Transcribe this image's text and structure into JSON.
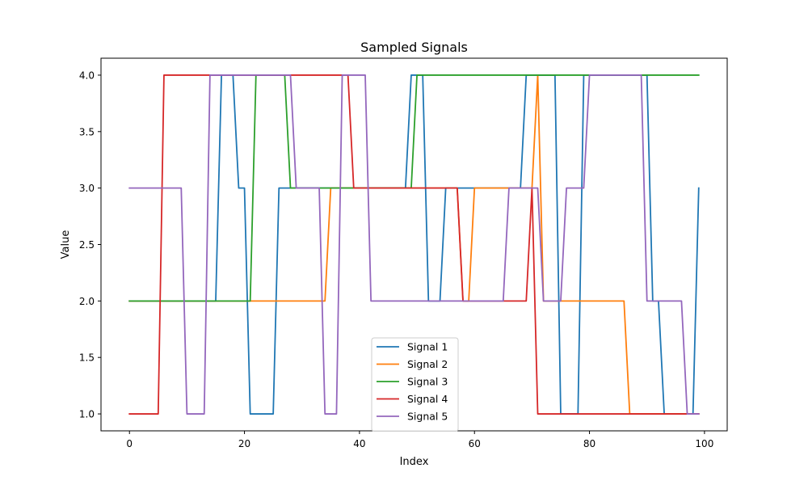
{
  "chart_data": {
    "type": "line",
    "title": "Sampled Signals",
    "xlabel": "Index",
    "ylabel": "Value",
    "xlim": [
      -4.95,
      103.95
    ],
    "ylim": [
      0.85,
      4.15
    ],
    "xticks": [
      0,
      20,
      40,
      60,
      80,
      100
    ],
    "xtick_labels": [
      "0",
      "20",
      "40",
      "60",
      "80",
      "100"
    ],
    "yticks": [
      1.0,
      1.5,
      2.0,
      2.5,
      3.0,
      3.5,
      4.0
    ],
    "ytick_labels": [
      "1.0",
      "1.5",
      "2.0",
      "2.5",
      "3.0",
      "3.5",
      "4.0"
    ],
    "grid": false,
    "legend_position": "lower center",
    "series": [
      {
        "name": "Signal 1",
        "color": "#1f77b4",
        "values": [
          2,
          2,
          2,
          2,
          2,
          2,
          2,
          2,
          2,
          2,
          2,
          2,
          2,
          2,
          2,
          2,
          4,
          4,
          4,
          3,
          3,
          1,
          1,
          1,
          1,
          1,
          3,
          3,
          3,
          3,
          3,
          3,
          3,
          3,
          3,
          3,
          3,
          3,
          3,
          3,
          3,
          3,
          3,
          3,
          3,
          3,
          3,
          3,
          3,
          4,
          4,
          4,
          2,
          2,
          2,
          3,
          3,
          3,
          3,
          3,
          3,
          3,
          3,
          3,
          3,
          3,
          3,
          3,
          3,
          4,
          4,
          4,
          4,
          4,
          4,
          1,
          1,
          1,
          1,
          4,
          4,
          4,
          4,
          4,
          4,
          4,
          4,
          4,
          4,
          4,
          4,
          2,
          2,
          1,
          1,
          1,
          1,
          1,
          1,
          3
        ]
      },
      {
        "name": "Signal 2",
        "color": "#ff7f0e",
        "values": [
          2,
          2,
          2,
          2,
          2,
          2,
          2,
          2,
          2,
          2,
          2,
          2,
          2,
          2,
          2,
          2,
          2,
          2,
          2,
          2,
          2,
          2,
          2,
          2,
          2,
          2,
          2,
          2,
          2,
          2,
          2,
          2,
          2,
          2,
          2,
          3,
          3,
          3,
          3,
          3,
          3,
          3,
          3,
          3,
          3,
          3,
          3,
          3,
          3,
          3,
          3,
          3,
          3,
          3,
          3,
          3,
          3,
          3,
          2,
          2,
          3,
          3,
          3,
          3,
          3,
          3,
          3,
          3,
          3,
          3,
          3,
          4,
          2,
          2,
          2,
          2,
          2,
          2,
          2,
          2,
          2,
          2,
          2,
          2,
          2,
          2,
          2,
          1,
          1,
          1,
          1,
          1,
          1,
          1,
          1,
          1,
          1,
          1,
          1,
          1
        ]
      },
      {
        "name": "Signal 3",
        "color": "#2ca02c",
        "values": [
          2,
          2,
          2,
          2,
          2,
          2,
          2,
          2,
          2,
          2,
          2,
          2,
          2,
          2,
          2,
          2,
          2,
          2,
          2,
          2,
          2,
          2,
          4,
          4,
          4,
          4,
          4,
          4,
          3,
          3,
          3,
          3,
          3,
          3,
          3,
          3,
          3,
          3,
          3,
          3,
          3,
          3,
          3,
          3,
          3,
          3,
          3,
          3,
          3,
          3,
          4,
          4,
          4,
          4,
          4,
          4,
          4,
          4,
          4,
          4,
          4,
          4,
          4,
          4,
          4,
          4,
          4,
          4,
          4,
          4,
          4,
          4,
          4,
          4,
          4,
          4,
          4,
          4,
          4,
          4,
          4,
          4,
          4,
          4,
          4,
          4,
          4,
          4,
          4,
          4,
          4,
          4,
          4,
          4,
          4,
          4,
          4,
          4,
          4,
          4
        ]
      },
      {
        "name": "Signal 4",
        "color": "#d62728",
        "values": [
          1,
          1,
          1,
          1,
          1,
          1,
          4,
          4,
          4,
          4,
          4,
          4,
          4,
          4,
          4,
          4,
          4,
          4,
          4,
          4,
          4,
          4,
          4,
          4,
          4,
          4,
          4,
          4,
          4,
          4,
          4,
          4,
          4,
          4,
          4,
          4,
          4,
          4,
          4,
          3,
          3,
          3,
          3,
          3,
          3,
          3,
          3,
          3,
          3,
          3,
          3,
          3,
          3,
          3,
          3,
          3,
          3,
          3,
          2,
          2,
          2,
          2,
          2,
          2,
          2,
          2,
          2,
          2,
          2,
          2,
          3,
          1,
          1,
          1,
          1,
          1,
          1,
          1,
          1,
          1,
          1,
          1,
          1,
          1,
          1,
          1,
          1,
          1,
          1,
          1,
          1,
          1,
          1,
          1,
          1,
          1,
          1,
          1,
          1,
          1
        ]
      },
      {
        "name": "Signal 5",
        "color": "#9467bd",
        "values": [
          3,
          3,
          3,
          3,
          3,
          3,
          3,
          3,
          3,
          3,
          1,
          1,
          1,
          1,
          4,
          4,
          4,
          4,
          4,
          4,
          4,
          4,
          4,
          4,
          4,
          4,
          4,
          4,
          4,
          3,
          3,
          3,
          3,
          3,
          1,
          1,
          1,
          4,
          4,
          4,
          4,
          4,
          2,
          2,
          2,
          2,
          2,
          2,
          2,
          2,
          2,
          2,
          2,
          2,
          2,
          2,
          2,
          2,
          2,
          2,
          2,
          2,
          2,
          2,
          2,
          2,
          3,
          3,
          3,
          3,
          3,
          3,
          2,
          2,
          2,
          2,
          3,
          3,
          3,
          3,
          4,
          4,
          4,
          4,
          4,
          4,
          4,
          4,
          4,
          4,
          2,
          2,
          2,
          2,
          2,
          2,
          2,
          1,
          1,
          1
        ]
      }
    ]
  }
}
